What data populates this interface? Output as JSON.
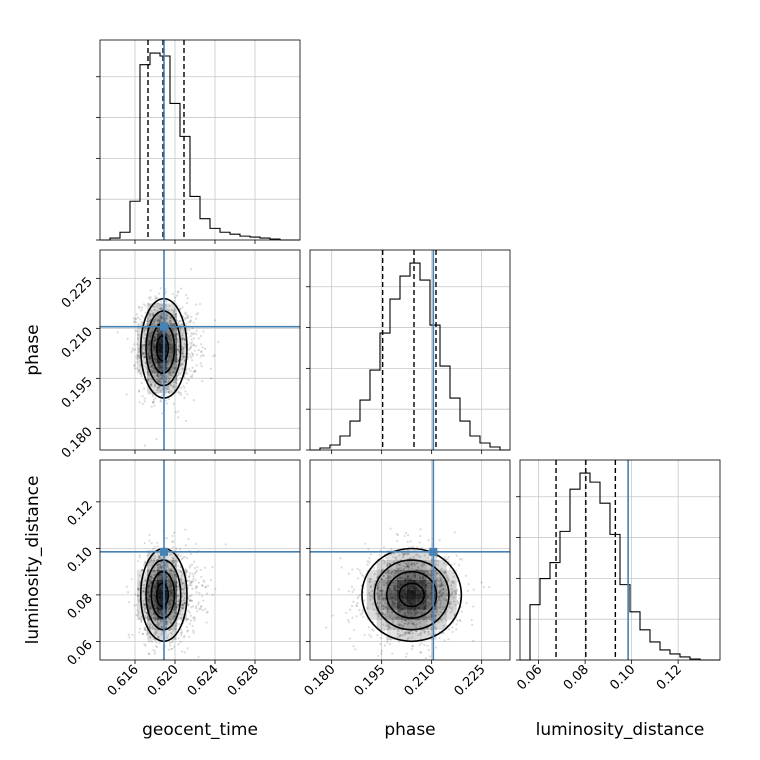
{
  "chart_data": {
    "type": "corner",
    "parameters": [
      "geocent_time",
      "phase",
      "luminosity_distance"
    ],
    "truths": {
      "geocent_time": 0.6189,
      "phase": 0.2105,
      "luminosity_distance": 0.0985
    },
    "truth_color": "#4682b4",
    "ranges": {
      "geocent_time": [
        0.6125,
        0.6325
      ],
      "phase": [
        0.1735,
        0.2335
      ],
      "luminosity_distance": [
        0.052,
        0.138
      ]
    },
    "ticks": {
      "geocent_time": [
        0.616,
        0.62,
        0.624,
        0.628
      ],
      "phase": [
        0.18,
        0.195,
        0.21,
        0.225
      ],
      "luminosity_distance": [
        0.06,
        0.08,
        0.1,
        0.12
      ]
    },
    "tick_labels": {
      "geocent_time": [
        "0.616",
        "0.620",
        "0.624",
        "0.628"
      ],
      "phase": [
        "0.180",
        "0.195",
        "0.210",
        "0.225"
      ],
      "luminosity_distance": [
        "0.06",
        "0.08",
        "0.10",
        "0.12"
      ]
    },
    "quantiles": {
      "geocent_time": [
        0.6173,
        0.6188,
        0.6209
      ],
      "phase": [
        0.1953,
        0.2047,
        0.2113
      ],
      "luminosity_distance": [
        0.0675,
        0.0803,
        0.093
      ]
    },
    "histograms": {
      "geocent_time": {
        "edges": [
          0.6125,
          0.6135,
          0.6145,
          0.6155,
          0.6165,
          0.6175,
          0.6185,
          0.6195,
          0.6205,
          0.6215,
          0.6225,
          0.6235,
          0.6245,
          0.6255,
          0.6265,
          0.6275,
          0.6285,
          0.6295,
          0.6305,
          0.6315,
          0.6325
        ],
        "counts": [
          0,
          2,
          8,
          40,
          181,
          193,
          190,
          141,
          107,
          45,
          22,
          12,
          8,
          6,
          4,
          3,
          2,
          1,
          0,
          0
        ]
      },
      "phase": {
        "edges": [
          0.1735,
          0.1765,
          0.1795,
          0.1825,
          0.1855,
          0.1885,
          0.1915,
          0.1945,
          0.1975,
          0.2005,
          0.2035,
          0.2065,
          0.2095,
          0.2125,
          0.2155,
          0.2185,
          0.2215,
          0.2245,
          0.2275,
          0.2305,
          0.2335
        ],
        "counts": [
          0,
          2,
          5,
          14,
          29,
          50,
          80,
          117,
          151,
          174,
          187,
          170,
          125,
          84,
          52,
          29,
          14,
          7,
          3,
          0
        ]
      },
      "luminosity_distance": {
        "edges": [
          0.052,
          0.0563,
          0.0606,
          0.0649,
          0.0692,
          0.0735,
          0.0778,
          0.0821,
          0.0864,
          0.0907,
          0.095,
          0.0993,
          0.1036,
          0.1079,
          0.1122,
          0.1165,
          0.1208,
          0.1251,
          0.1294,
          0.1337,
          0.138
        ],
        "counts": [
          0,
          55,
          81,
          97,
          128,
          170,
          186,
          177,
          156,
          125,
          75,
          48,
          30,
          18,
          10,
          6,
          3,
          1,
          0,
          0
        ]
      }
    },
    "correlations": {
      "phase|geocent_time": -0.05,
      "luminosity_distance|geocent_time": 0.03,
      "luminosity_distance|phase": 0.0
    },
    "std": {
      "geocent_time": 0.0011,
      "phase": 0.0071,
      "luminosity_distance": 0.0095
    },
    "means": {
      "geocent_time": 0.6187,
      "phase": 0.204,
      "luminosity_distance": 0.08
    },
    "contour_levels_sigma": [
      0.5,
      1.0,
      1.5,
      2.0
    ],
    "grid": true
  }
}
